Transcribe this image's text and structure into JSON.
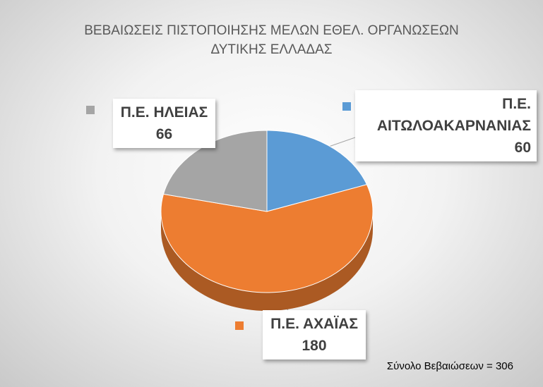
{
  "chart_data": {
    "type": "pie",
    "title": "ΒΕΒΑΙΩΣΕΙΣ ΠΙΣΤΟΠΟΙΗΣΗΣ ΜΕΛΩΝ ΕΘΕΛ. ΟΡΓΑΝΩΣΕΩΝ\nΔΥΤΙΚΗΣ ΕΛΛΑΔΑΣ",
    "categories": [
      "Π.Ε. ΑΙΤΩΛΟΑΚΑΡΝΑΝΙΑΣ",
      "Π.Ε. ΑΧΑΪΑΣ",
      "Π.Ε. ΗΛΕΙΑΣ"
    ],
    "values": [
      60,
      180,
      66
    ],
    "colors": [
      "#5b9bd5",
      "#ed7d31",
      "#a5a5a5"
    ],
    "annotation": "Σύνολο Βεβαιώσεων = 306"
  }
}
